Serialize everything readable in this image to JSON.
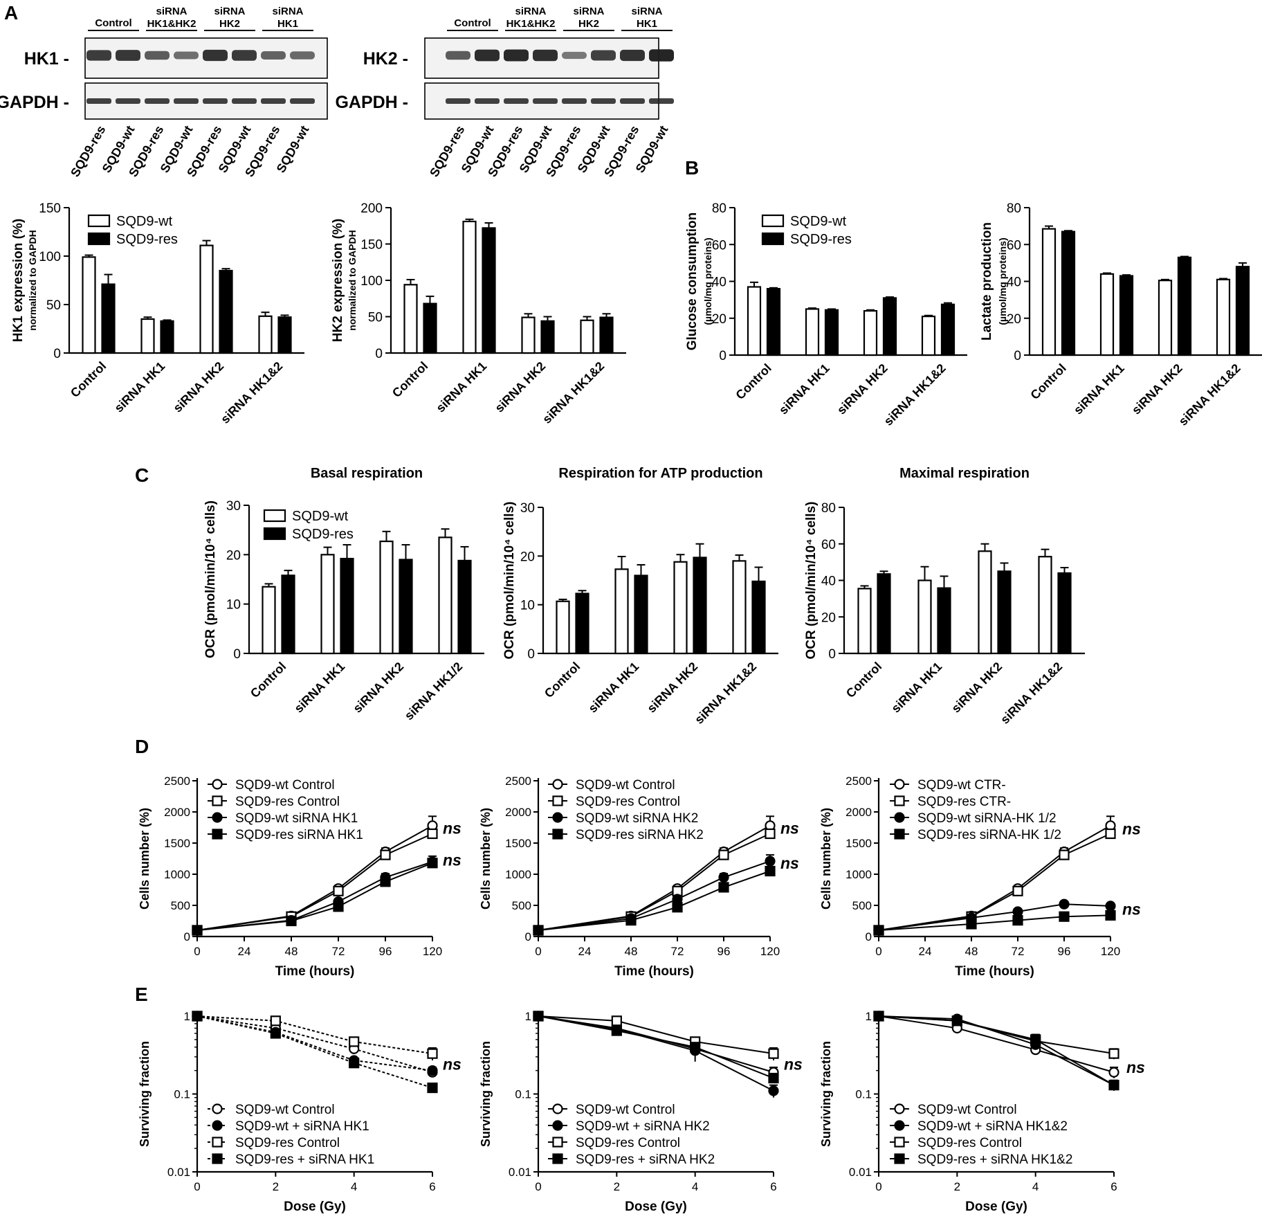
{
  "colors": {
    "ink": "#000000",
    "paper": "#ffffff",
    "blot_band": "#1e1e1e",
    "blot_bg": "#f2f2f2"
  },
  "panel_labels": [
    "A",
    "B",
    "C",
    "D",
    "E"
  ],
  "blots": [
    {
      "name": "hk1",
      "protein": "HK1 -",
      "loading": "GAPDH -",
      "groups": [
        "Control",
        "siRNA HK1&HK2",
        "siRNA HK2",
        "siRNA HK1"
      ],
      "lanes": [
        "SQD9-res",
        "SQD9-wt",
        "SQD9-res",
        "SQD9-wt",
        "SQD9-res",
        "SQD9-wt",
        "SQD9-res",
        "SQD9-wt"
      ],
      "band_intensity": [
        0.78,
        0.82,
        0.55,
        0.42,
        0.85,
        0.8,
        0.5,
        0.45
      ],
      "gapdh_intensity": [
        0.75,
        0.75,
        0.75,
        0.75,
        0.75,
        0.75,
        0.75,
        0.75
      ]
    },
    {
      "name": "hk2",
      "protein": "HK2 -",
      "loading": "GAPDH -",
      "groups": [
        "Control",
        "siRNA HK1&HK2",
        "siRNA HK2",
        "siRNA HK1"
      ],
      "lanes": [
        "SQD9-res",
        "SQD9-wt",
        "SQD9-res",
        "SQD9-wt",
        "SQD9-res",
        "SQD9-wt",
        "SQD9-res",
        "SQD9-wt"
      ],
      "band_intensity": [
        0.55,
        0.9,
        0.92,
        0.88,
        0.35,
        0.75,
        0.85,
        0.95
      ],
      "gapdh_intensity": [
        0.75,
        0.75,
        0.75,
        0.75,
        0.75,
        0.75,
        0.75,
        0.75
      ]
    }
  ],
  "chart_data": [
    {
      "id": "A-hk1",
      "type": "bar",
      "ylabel": "HK1 expression (%)",
      "ylabel2": "normalized to GAPDH",
      "ylim": [
        0,
        150
      ],
      "yticks": [
        0,
        50,
        100,
        150
      ],
      "categories": [
        "Control",
        "siRNA HK1",
        "siRNA HK2",
        "siRNA HK1&2"
      ],
      "legend": [
        "SQD9-wt",
        "SQD9-res"
      ],
      "series": [
        {
          "name": "SQD9-wt",
          "fill": "open",
          "values": [
            99,
            35,
            111,
            38
          ],
          "errors": [
            2,
            2,
            5,
            4
          ]
        },
        {
          "name": "SQD9-res",
          "fill": "solid",
          "values": [
            71,
            33,
            85,
            37
          ],
          "errors": [
            10,
            1,
            2,
            2
          ]
        }
      ]
    },
    {
      "id": "A-hk2",
      "type": "bar",
      "ylabel": "HK2 expression (%)",
      "ylabel2": "normalized to GAPDH",
      "ylim": [
        0,
        200
      ],
      "yticks": [
        0,
        50,
        100,
        150,
        200
      ],
      "categories": [
        "Control",
        "siRNA HK1",
        "siRNA HK2",
        "siRNA HK1&2"
      ],
      "legend": [],
      "series": [
        {
          "name": "SQD9-wt",
          "fill": "open",
          "values": [
            94,
            181,
            49,
            45
          ],
          "errors": [
            7,
            3,
            5,
            5
          ]
        },
        {
          "name": "SQD9-res",
          "fill": "solid",
          "values": [
            68,
            172,
            44,
            49
          ],
          "errors": [
            10,
            7,
            6,
            5
          ]
        }
      ]
    },
    {
      "id": "B-glucose",
      "type": "bar",
      "ylabel": "Glucose consumption",
      "ylabel2": "(µmol/mg proteins)",
      "ylim": [
        0,
        80
      ],
      "yticks": [
        0,
        20,
        40,
        60,
        80
      ],
      "categories": [
        "Control",
        "siRNA HK1",
        "siRNA HK2",
        "siRNA HK1&2"
      ],
      "legend": [
        "SQD9-wt",
        "SQD9-res"
      ],
      "series": [
        {
          "name": "SQD9-wt",
          "fill": "open",
          "values": [
            37,
            25,
            24,
            21
          ],
          "errors": [
            2.5,
            0.5,
            0.5,
            0.5
          ]
        },
        {
          "name": "SQD9-res",
          "fill": "solid",
          "values": [
            36,
            24.5,
            31,
            27.5
          ],
          "errors": [
            0.5,
            0.5,
            0.5,
            0.8
          ]
        }
      ]
    },
    {
      "id": "B-lactate",
      "type": "bar",
      "ylabel": "Lactate production",
      "ylabel2": "(µmol/mg proteins)",
      "ylim": [
        0,
        80
      ],
      "yticks": [
        0,
        20,
        40,
        60,
        80
      ],
      "categories": [
        "Control",
        "siRNA HK1",
        "siRNA HK2",
        "siRNA HK1&2"
      ],
      "legend": [],
      "series": [
        {
          "name": "SQD9-wt",
          "fill": "open",
          "values": [
            68.5,
            44,
            40.5,
            41
          ],
          "errors": [
            1.5,
            0.5,
            0.5,
            0.5
          ]
        },
        {
          "name": "SQD9-res",
          "fill": "solid",
          "values": [
            67,
            43,
            53,
            48
          ],
          "errors": [
            0.5,
            0.5,
            0.5,
            2
          ]
        }
      ]
    },
    {
      "id": "C-basal",
      "type": "bar",
      "title": "Basal respiration",
      "ylabel": "OCR (pmol/min/10⁴ cells)",
      "ylabel2": "",
      "ylim": [
        0,
        30
      ],
      "yticks": [
        0,
        10,
        20,
        30
      ],
      "categories": [
        "Control",
        "siRNA HK1",
        "siRNA HK2",
        "siRNA HK1/2"
      ],
      "legend": [
        "SQD9-wt",
        "SQD9-res"
      ],
      "series": [
        {
          "name": "SQD9-wt",
          "fill": "open",
          "values": [
            13.5,
            20,
            22.7,
            23.5
          ],
          "errors": [
            0.6,
            1.5,
            2,
            1.7
          ]
        },
        {
          "name": "SQD9-res",
          "fill": "solid",
          "values": [
            15.8,
            19.2,
            19,
            18.8
          ],
          "errors": [
            1,
            2.8,
            3,
            2.8
          ]
        }
      ]
    },
    {
      "id": "C-atp",
      "type": "bar",
      "title": "Respiration for ATP production",
      "ylabel": "OCR (pmol/min/10⁴ cells)",
      "ylabel2": "",
      "ylim": [
        0,
        30
      ],
      "yticks": [
        0,
        10,
        20,
        30
      ],
      "categories": [
        "Control",
        "siRNA HK1",
        "siRNA HK2",
        "siRNA HK1&2"
      ],
      "legend": [],
      "series": [
        {
          "name": "SQD9-wt",
          "fill": "open",
          "values": [
            10.7,
            17.3,
            18.8,
            19
          ],
          "errors": [
            0.4,
            2.6,
            1.5,
            1.2
          ]
        },
        {
          "name": "SQD9-res",
          "fill": "solid",
          "values": [
            12.3,
            16,
            19.7,
            14.8
          ],
          "errors": [
            0.6,
            2.2,
            2.8,
            2.9
          ]
        }
      ]
    },
    {
      "id": "C-max",
      "type": "bar",
      "title": "Maximal respiration",
      "ylabel": "OCR (pmol/min/10⁴ cells)",
      "ylabel2": "",
      "ylim": [
        0,
        80
      ],
      "yticks": [
        0,
        20,
        40,
        60,
        80
      ],
      "categories": [
        "Control",
        "siRNA HK1",
        "siRNA HK2",
        "siRNA HK1&2"
      ],
      "legend": [],
      "series": [
        {
          "name": "SQD9-wt",
          "fill": "open",
          "values": [
            35.5,
            40,
            56,
            53
          ],
          "errors": [
            1.5,
            7.5,
            4,
            4
          ]
        },
        {
          "name": "SQD9-res",
          "fill": "solid",
          "values": [
            43.5,
            35.8,
            45,
            44
          ],
          "errors": [
            1.5,
            6.5,
            4.5,
            3
          ]
        }
      ]
    },
    {
      "id": "D-hk1",
      "type": "line",
      "xlabel": "Time (hours)",
      "ylabel": "Cells number (%)",
      "x": [
        0,
        48,
        72,
        96,
        120
      ],
      "xticks": [
        0,
        24,
        48,
        72,
        96,
        120
      ],
      "yticks": [
        0,
        500,
        1000,
        1500,
        2000,
        2500
      ],
      "ylim": [
        0,
        2500
      ],
      "series": [
        {
          "name": "SQD9-wt Control",
          "marker": "circle-open",
          "values": [
            100,
            330,
            770,
            1360,
            1780
          ],
          "errors": [
            0,
            20,
            50,
            60,
            150
          ]
        },
        {
          "name": "SQD9-res Control",
          "marker": "square-open",
          "values": [
            100,
            320,
            730,
            1310,
            1650
          ],
          "errors": [
            0,
            20,
            40,
            60,
            40
          ]
        },
        {
          "name": "SQD9-wt siRNA HK1",
          "marker": "circle-solid",
          "values": [
            100,
            260,
            560,
            950,
            1200
          ],
          "errors": [
            0,
            20,
            40,
            60,
            90
          ]
        },
        {
          "name": "SQD9-res siRNA HK1",
          "marker": "square-solid",
          "values": [
            100,
            250,
            480,
            880,
            1180
          ],
          "errors": [
            0,
            20,
            30,
            40,
            40
          ]
        }
      ],
      "annotations": [
        {
          "text": "ns",
          "y": 1740
        },
        {
          "text": "ns",
          "y": 1230
        }
      ]
    },
    {
      "id": "D-hk2",
      "type": "line",
      "xlabel": "Time (hours)",
      "ylabel": "Cells number (%)",
      "x": [
        0,
        48,
        72,
        96,
        120
      ],
      "xticks": [
        0,
        24,
        48,
        72,
        96,
        120
      ],
      "yticks": [
        0,
        500,
        1000,
        1500,
        2000,
        2500
      ],
      "ylim": [
        0,
        2500
      ],
      "series": [
        {
          "name": "SQD9-wt Control",
          "marker": "circle-open",
          "values": [
            100,
            330,
            770,
            1360,
            1780
          ],
          "errors": [
            0,
            20,
            50,
            60,
            150
          ]
        },
        {
          "name": "SQD9-res Control",
          "marker": "square-open",
          "values": [
            100,
            320,
            730,
            1310,
            1650
          ],
          "errors": [
            0,
            20,
            40,
            60,
            40
          ]
        },
        {
          "name": "SQD9-wt siRNA HK2",
          "marker": "circle-solid",
          "values": [
            100,
            290,
            600,
            950,
            1210
          ],
          "errors": [
            0,
            20,
            40,
            60,
            100
          ]
        },
        {
          "name": "SQD9-res siRNA HK2",
          "marker": "square-solid",
          "values": [
            100,
            260,
            470,
            790,
            1050
          ],
          "errors": [
            0,
            20,
            30,
            40,
            40
          ]
        }
      ],
      "annotations": [
        {
          "text": "ns",
          "y": 1740
        },
        {
          "text": "ns",
          "y": 1180
        }
      ]
    },
    {
      "id": "D-hk12",
      "type": "line",
      "xlabel": "Time (hours)",
      "ylabel": "Cells number (%)",
      "x": [
        0,
        48,
        72,
        96,
        120
      ],
      "xticks": [
        0,
        24,
        48,
        72,
        96,
        120
      ],
      "yticks": [
        0,
        500,
        1000,
        1500,
        2000,
        2500
      ],
      "ylim": [
        0,
        2500
      ],
      "series": [
        {
          "name": "SQD9-wt CTR-",
          "marker": "circle-open",
          "values": [
            100,
            330,
            770,
            1360,
            1780
          ],
          "errors": [
            0,
            20,
            50,
            60,
            150
          ]
        },
        {
          "name": "SQD9-res CTR-",
          "marker": "square-open",
          "values": [
            100,
            320,
            730,
            1310,
            1650
          ],
          "errors": [
            0,
            20,
            40,
            60,
            40
          ]
        },
        {
          "name": "SQD9-wt siRNA-HK 1/2",
          "marker": "circle-solid",
          "values": [
            100,
            300,
            400,
            520,
            490
          ],
          "errors": [
            0,
            10,
            10,
            10,
            10
          ]
        },
        {
          "name": "SQD9-res siRNA-HK 1/2",
          "marker": "square-solid",
          "values": [
            100,
            200,
            260,
            320,
            340
          ],
          "errors": [
            0,
            10,
            10,
            10,
            10
          ]
        }
      ],
      "annotations": [
        {
          "text": "ns",
          "y": 1730
        },
        {
          "text": "ns",
          "y": 440
        }
      ]
    },
    {
      "id": "E-hk1",
      "type": "line",
      "yscale": "log",
      "xlabel": "Dose (Gy)",
      "ylabel": "Surviving fraction",
      "x": [
        0,
        2,
        4,
        6
      ],
      "xticks": [
        0,
        2,
        4,
        6
      ],
      "ylim": [
        0.01,
        1
      ],
      "yticks": [
        0.01,
        0.1,
        1
      ],
      "ytick_labels": [
        "0.01",
        "0.1",
        "1"
      ],
      "dashed": true,
      "series": [
        {
          "name": "SQD9-wt Control",
          "marker": "circle-open",
          "values": [
            1,
            0.7,
            0.38,
            0.19
          ],
          "errors": [
            0,
            0.05,
            0.03,
            0.02
          ]
        },
        {
          "name": "SQD9-wt + siRNA HK1",
          "marker": "circle-solid",
          "values": [
            1,
            0.62,
            0.27,
            0.2
          ],
          "errors": [
            0,
            0.04,
            0.02,
            0.02
          ]
        },
        {
          "name": "SQD9-res Control",
          "marker": "square-open",
          "values": [
            1,
            0.87,
            0.47,
            0.33
          ],
          "errors": [
            0,
            0.04,
            0.03,
            0.06
          ]
        },
        {
          "name": "SQD9-res + siRNA HK1",
          "marker": "square-solid",
          "values": [
            1,
            0.6,
            0.25,
            0.12
          ],
          "errors": [
            0,
            0.04,
            0.02,
            0.01
          ]
        }
      ],
      "annotations": [
        {
          "text": "ns",
          "y": 0.24
        }
      ]
    },
    {
      "id": "E-hk2",
      "type": "line",
      "yscale": "log",
      "xlabel": "Dose (Gy)",
      "ylabel": "Surviving fraction",
      "x": [
        0,
        2,
        4,
        6
      ],
      "xticks": [
        0,
        2,
        4,
        6
      ],
      "ylim": [
        0.01,
        1
      ],
      "yticks": [
        0.01,
        0.1,
        1
      ],
      "ytick_labels": [
        "0.01",
        "0.1",
        "1"
      ],
      "dashed": false,
      "series": [
        {
          "name": "SQD9-wt Control",
          "marker": "circle-open",
          "values": [
            1,
            0.7,
            0.38,
            0.19
          ],
          "errors": [
            0,
            0.04,
            0.04,
            0.03
          ]
        },
        {
          "name": "SQD9-wt + siRNA HK2",
          "marker": "circle-solid",
          "values": [
            1,
            0.68,
            0.36,
            0.11
          ],
          "errors": [
            0,
            0.08,
            0.1,
            0.02
          ]
        },
        {
          "name": "SQD9-res Control",
          "marker": "square-open",
          "values": [
            1,
            0.87,
            0.47,
            0.33
          ],
          "errors": [
            0,
            0.04,
            0.04,
            0.06
          ]
        },
        {
          "name": "SQD9-res + siRNA HK2",
          "marker": "square-solid",
          "values": [
            1,
            0.65,
            0.4,
            0.16
          ],
          "errors": [
            0,
            0.05,
            0.04,
            0.02
          ]
        }
      ],
      "annotations": [
        {
          "text": "ns",
          "y": 0.24
        }
      ]
    },
    {
      "id": "E-hk12",
      "type": "line",
      "yscale": "log",
      "xlabel": "Dose (Gy)",
      "ylabel": "Surviving fraction",
      "x": [
        0,
        2,
        4,
        6
      ],
      "xticks": [
        0,
        2,
        4,
        6
      ],
      "ylim": [
        0.01,
        1
      ],
      "yticks": [
        0.01,
        0.1,
        1
      ],
      "ytick_labels": [
        "0.01",
        "0.1",
        "1"
      ],
      "dashed": false,
      "series": [
        {
          "name": "SQD9-wt Control",
          "marker": "circle-open",
          "values": [
            1,
            0.7,
            0.37,
            0.19
          ],
          "errors": [
            0,
            0.03,
            0.03,
            0.03
          ]
        },
        {
          "name": "SQD9-wt + siRNA HK1&2",
          "marker": "circle-solid",
          "values": [
            1,
            0.92,
            0.43,
            0.13
          ],
          "errors": [
            0,
            0.04,
            0.05,
            0.02
          ]
        },
        {
          "name": "SQD9-res Control",
          "marker": "square-open",
          "values": [
            1,
            0.87,
            0.48,
            0.33
          ],
          "errors": [
            0,
            0.04,
            0.1,
            0.05
          ]
        },
        {
          "name": "SQD9-res + siRNA HK1&2",
          "marker": "square-solid",
          "values": [
            1,
            0.87,
            0.5,
            0.13
          ],
          "errors": [
            0,
            0.04,
            0.08,
            0.01
          ]
        }
      ],
      "annotations": [
        {
          "text": "ns",
          "y": 0.22
        }
      ]
    }
  ]
}
